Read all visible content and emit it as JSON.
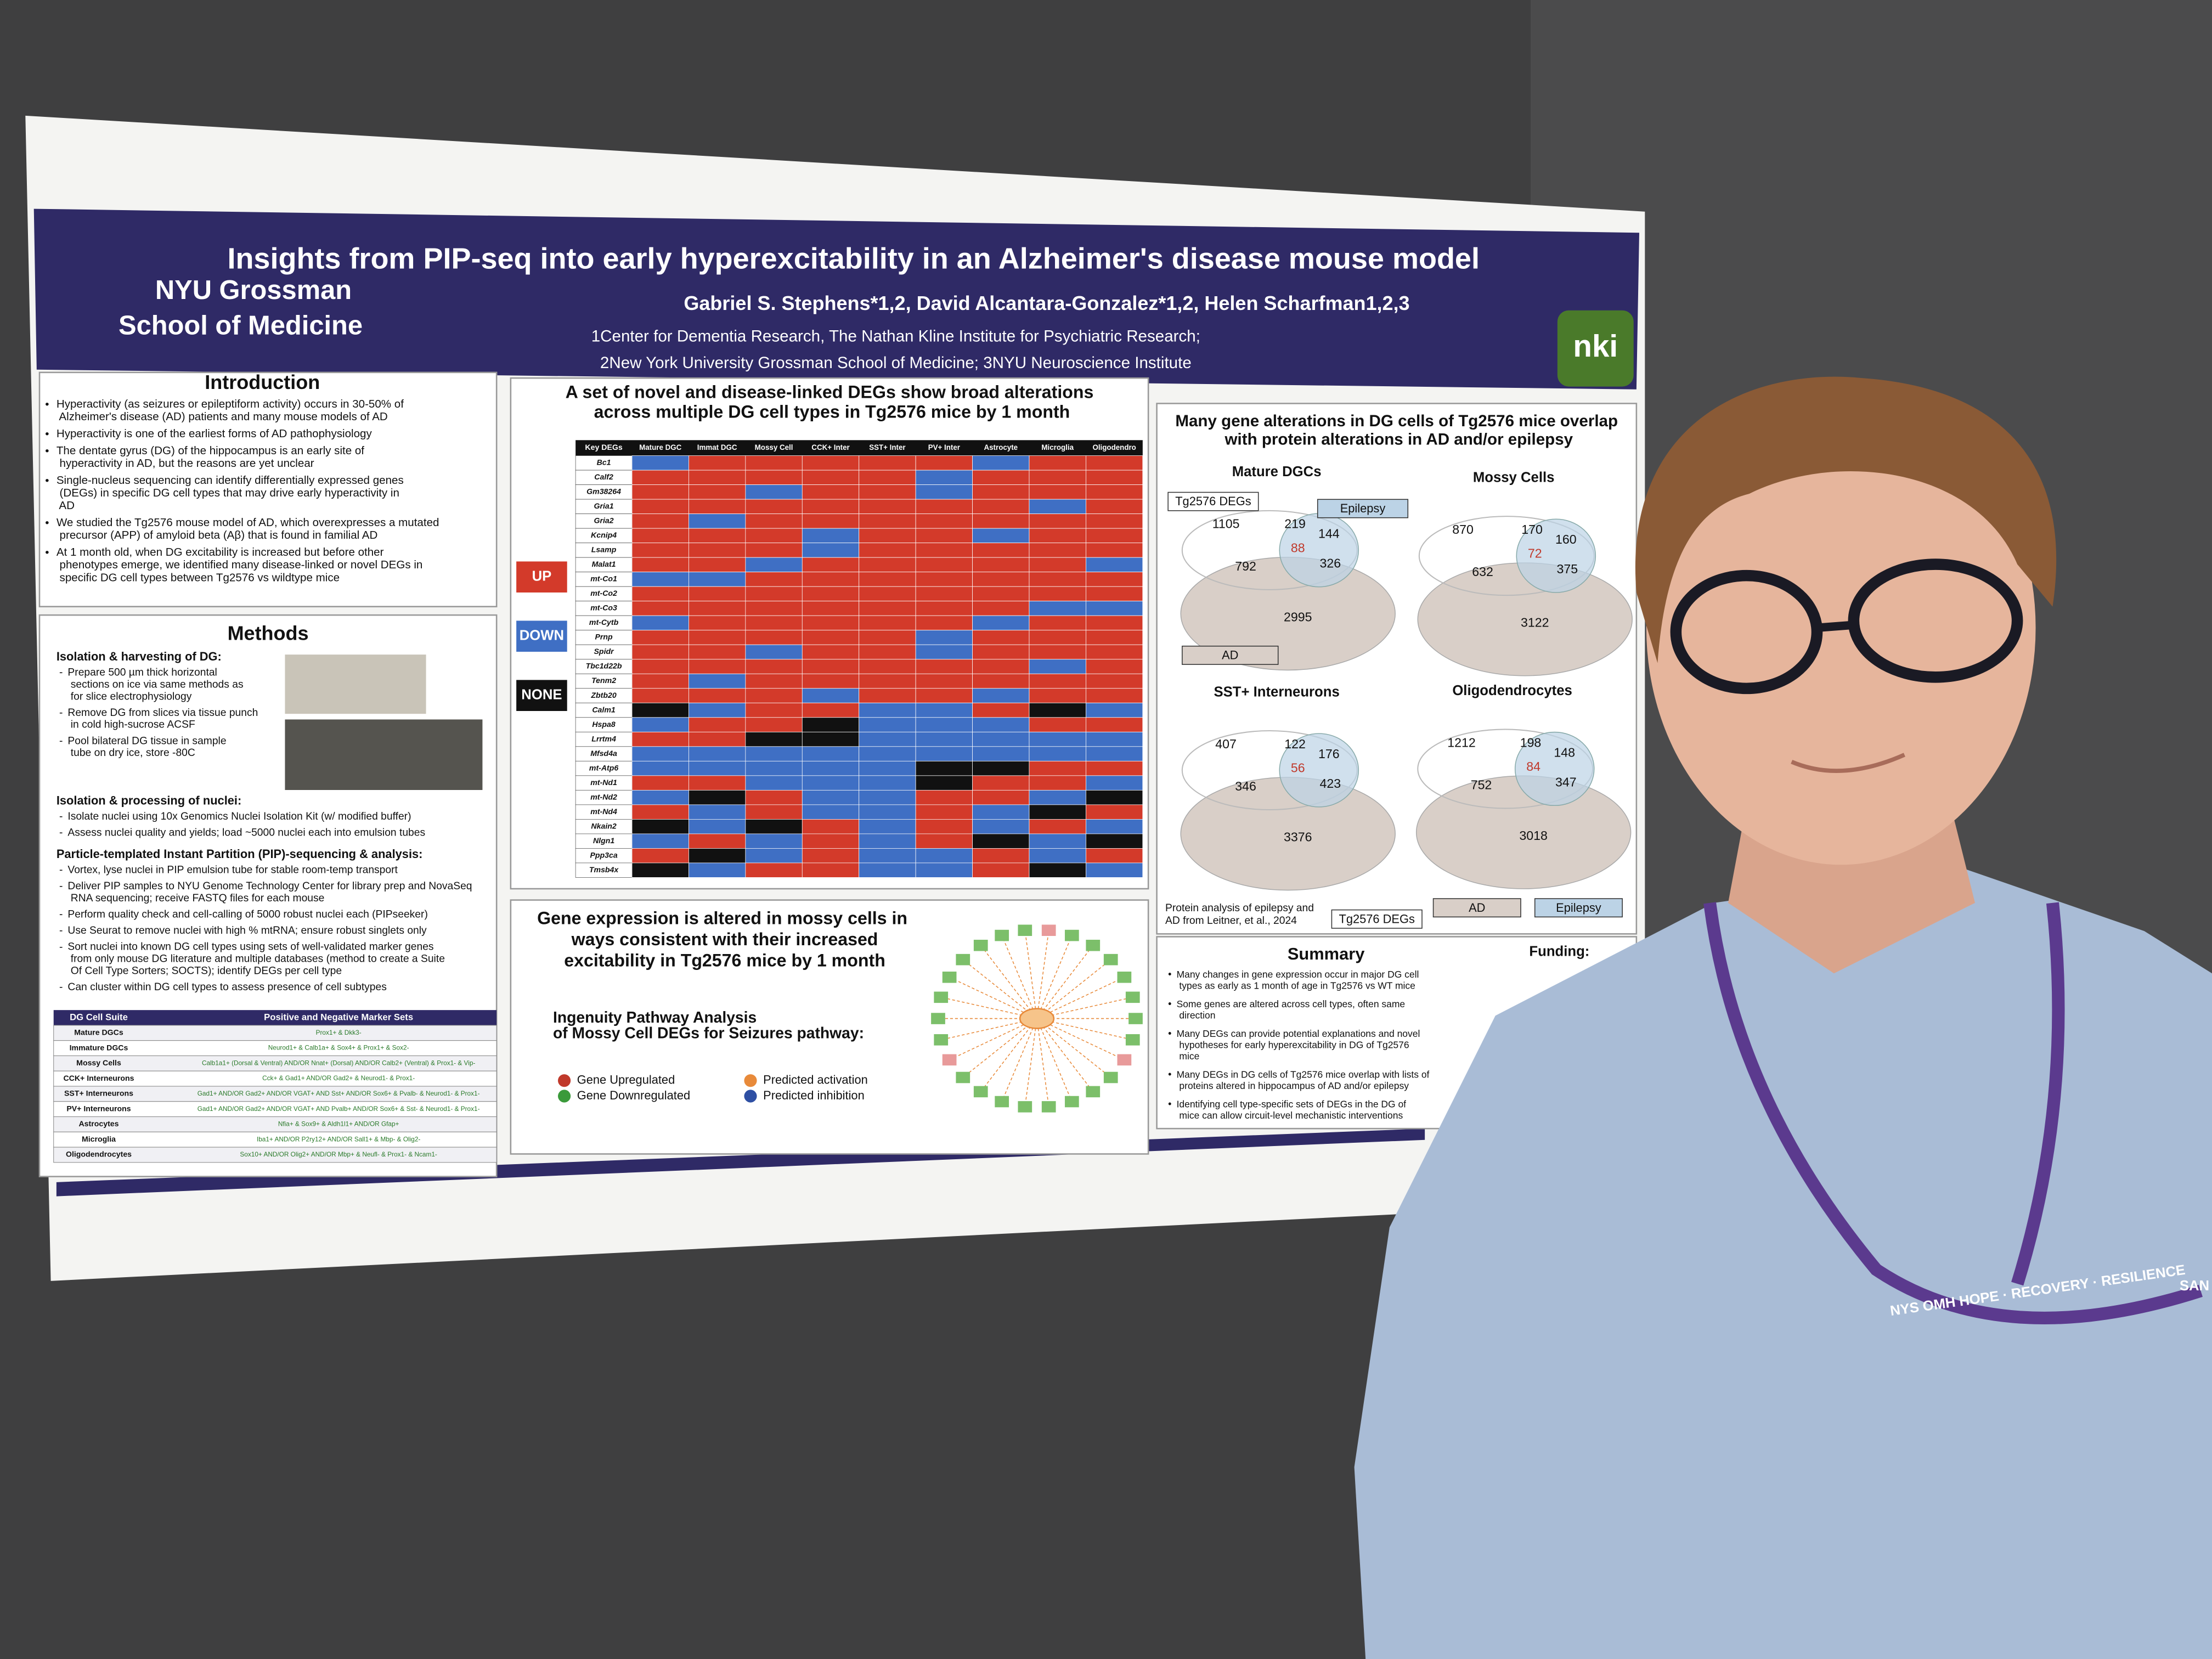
{
  "poster": {
    "logo_left": [
      "NYU Grossman",
      "School of Medicine"
    ],
    "logo_right": "nki",
    "title": "Insights from PIP-seq into early hyperexcitability in an Alzheimer's disease mouse model",
    "authors": "Gabriel S. Stephens*1,2, David Alcantara-Gonzalez*1,2, Helen Scharfman1,2,3",
    "affiliations": [
      "1Center for Dementia Research, The Nathan Kline Institute for Psychiatric Research;",
      "2New York University Grossman School of Medicine; 3NYU Neuroscience Institute"
    ],
    "introduction": {
      "title": "Introduction",
      "bullets": [
        "Hyperactivity (as seizures or epileptiform activity) occurs in 30-50% of Alzheimer's disease (AD) patients and many mouse models of AD",
        "Hyperactivity is one of the earliest forms of AD pathophysiology",
        "The dentate gyrus (DG) of the hippocampus is an early site of hyperactivity in AD, but the reasons are yet unclear",
        "Single-nucleus sequencing can identify differentially expressed genes (DEGs) in specific DG cell types that may drive early hyperactivity in AD",
        "We studied the Tg2576 mouse model of AD, which overexpresses a mutated precursor (APP) of amyloid beta (Aβ) that is found in familial AD",
        "At 1 month old, when DG excitability is increased but before other phenotypes emerge, we identified many disease-linked or novel DEGs in specific DG cell types between Tg2576 vs wildtype mice"
      ]
    },
    "methods": {
      "title": "Methods",
      "sections": [
        {
          "heading": "Isolation & harvesting of DG:",
          "bullets": [
            "Prepare 500 µm thick horizontal sections on ice via same methods as for slice electrophysiology",
            "Remove DG from slices via tissue punch in cold high-sucrose ACSF",
            "Pool bilateral DG tissue in sample tube on dry ice, store -80C"
          ]
        },
        {
          "heading": "Isolation & processing of nuclei:",
          "bullets": [
            "Isolate nuclei using 10x Genomics Nuclei Isolation Kit (w/ modified buffer)",
            "Assess nuclei quality and yields; load ~5000 nuclei each into emulsion tubes"
          ]
        },
        {
          "heading": "Particle-templated Instant Partition (PIP)-sequencing & analysis:",
          "bullets": [
            "Vortex, lyse nuclei in PIP emulsion tube for stable room-temp transport",
            "Deliver PIP samples to NYU Genome Technology Center for library prep and NovaSeq RNA sequencing; receive FASTQ files for each mouse",
            "Perform quality check and cell-calling of 5000 robust nuclei each (PIPseeker)",
            "Use Seurat to remove nuclei with high % mtRNA; ensure robust singlets only",
            "Sort nuclei into known DG cell types using sets of well-validated marker genes from only mouse DG literature and multiple databases (method to create a Suite Of Cell Type Sorters; SOCTS); identify DEGs per cell type",
            "Can cluster within DG cell types to assess presence of cell subtypes"
          ]
        }
      ],
      "table": {
        "headers": [
          "DG Cell Suite",
          "Positive and Negative Marker Sets"
        ],
        "rows": [
          [
            "Mature DGCs",
            "Prox1+ & Dkk3-"
          ],
          [
            "Immature DGCs",
            "Neurod1+ & Calb1a+ & Sox4+ & Prox1+ & Sox2-"
          ],
          [
            "Mossy Cells",
            "Calb1a1+ (Dorsal & Ventral) AND/OR Nnat+ (Dorsal) AND/OR Calb2+ (Ventral) & Prox1- & Vip-"
          ],
          [
            "CCK+ Interneurons",
            "Cck+ & Gad1+ AND/OR Gad2+ & Neurod1- & Prox1-"
          ],
          [
            "SST+ Interneurons",
            "Gad1+ AND/OR Gad2+ AND/OR VGAT+ AND Sst+ AND/OR Sox6+ & Pvalb- & Neurod1- & Prox1-"
          ],
          [
            "PV+ Interneurons",
            "Gad1+ AND/OR Gad2+ AND/OR VGAT+ AND Pvalb+ AND/OR Sox6+ & Sst- & Neurod1- & Prox1-"
          ],
          [
            "Astrocytes",
            "Nfia+ & Sox9+ & Aldh1l1+ AND/OR Gfap+"
          ],
          [
            "Microglia",
            "Iba1+ AND/OR P2ry12+ AND/OR Sall1+ & Mbp- & Olig2-"
          ],
          [
            "Oligodendrocytes",
            "Sox10+ AND/OR Olig2+ AND/OR Mbp+ & Neufl- & Prox1- & Ncam1-"
          ]
        ]
      }
    },
    "degs": {
      "title": "A set of novel and disease-linked DEGs show broad alterations across multiple DG cell types in Tg2576 mice by 1 month",
      "legend": [
        "UP",
        "DOWN",
        "NONE"
      ],
      "corner": "Key DEGs",
      "columns": [
        "Mature DGC",
        "Immat DGC",
        "Mossy Cell",
        "CCK+ Inter",
        "SST+ Inter",
        "PV+ Inter",
        "Astrocyte",
        "Microglia",
        "Oligodendro"
      ],
      "genes": [
        "Bc1",
        "Calf2",
        "Gm38264",
        "Gria1",
        "Gria2",
        "Kcnip4",
        "Lsamp",
        "Malat1",
        "mt-Co1",
        "mt-Co2",
        "mt-Co3",
        "mt-Cytb",
        "Prnp",
        "Spidr",
        "Tbc1d22b",
        "Tenm2",
        "Zbtb20",
        "Calm1",
        "Hspa8",
        "Lrrtm4",
        "Mfsd4a",
        "mt-Atp6",
        "mt-Nd1",
        "mt-Nd2",
        "mt-Nd4",
        "Nkain2",
        "Nlgn1",
        "Ppp3ca",
        "Tmsb4x"
      ]
    },
    "overlap": {
      "title": "Many gene alterations in DG cells of Tg2576 mice overlap with protein alterations in AD and/or epilepsy",
      "panels": [
        {
          "name": "Mature DGCs",
          "values": [
            1105,
            219,
            144,
            88,
            792,
            326,
            2995
          ]
        },
        {
          "name": "Mossy Cells",
          "values": [
            870,
            170,
            160,
            72,
            632,
            375,
            3122
          ]
        },
        {
          "name": "SST+ Interneurons",
          "values": [
            407,
            122,
            176,
            56,
            346,
            423,
            3376
          ]
        },
        {
          "name": "Oligodendrocytes",
          "values": [
            1212,
            198,
            148,
            84,
            752,
            347,
            3018
          ]
        }
      ],
      "labels": [
        "Tg2576 DEGs",
        "Epilepsy",
        "AD"
      ],
      "note": [
        "Protein analysis of epilepsy and",
        "AD from Leitner, et al., 2024"
      ]
    },
    "mossy": {
      "title": "Gene expression is altered in mossy cells in ways consistent with their increased excitability in Tg2576 mice by 1 month",
      "ipa_title": [
        "Ingenuity Pathway Analysis",
        "of Mossy Cell DEGs for Seizures pathway:"
      ],
      "legend": [
        "Gene Upregulated",
        "Gene Downregulated",
        "Predicted activation",
        "Predicted inhibition"
      ]
    },
    "summary": {
      "title": "Summary",
      "bullets": [
        "Many changes in gene expression occur in major DG cell types as early as 1 month of age in Tg2576 vs WT mice",
        "Some genes are altered across cell types, often same direction",
        "Many DEGs can provide potential explanations and novel hypotheses for early hyperexcitability in DG of Tg2576 mice",
        "Many DEGs in DG cells of Tg2576 mice overlap with lists of proteins altered in hippocampus of AD and/or epilepsy",
        "Identifying cell type-specific sets of DEGs in the DG of mice can allow circuit-level mechanistic interventions"
      ]
    },
    "funding": {
      "title": "Funding:"
    }
  },
  "lanyard": [
    "NYS OMH HOPE · RECOVERY · RESILIENCE",
    "SAN"
  ]
}
